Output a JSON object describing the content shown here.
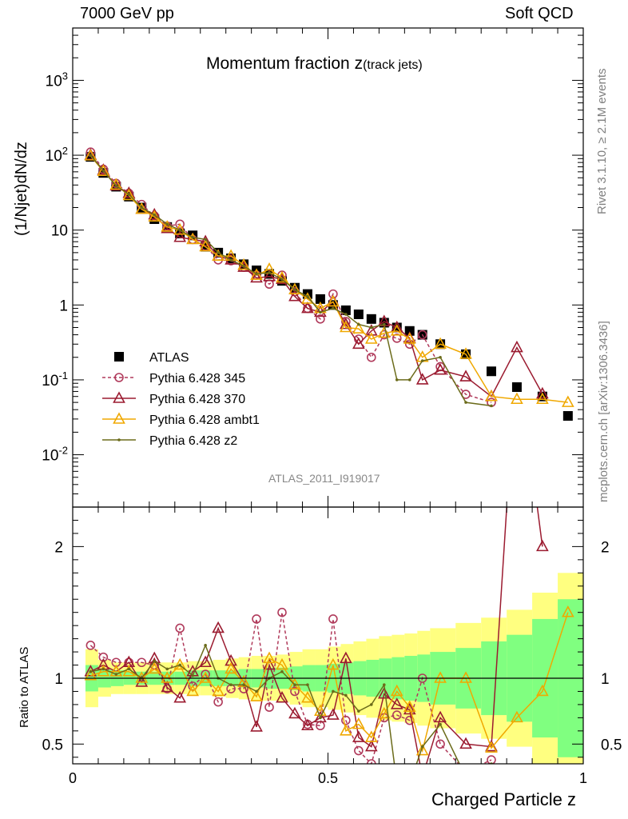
{
  "header": {
    "left": "7000 GeV pp",
    "right": "Soft QCD"
  },
  "sidebar": {
    "rivet": "Rivet 3.1.10, ≥ 2.1M events",
    "mcplots": "mcplots.cern.ch [arXiv:1306.3436]"
  },
  "chart_data": {
    "type": "scatter",
    "title": "Momentum fraction z",
    "title_suffix": "(track jets)",
    "watermark": "ATLAS_2011_I919017",
    "xlabel": "Charged Particle z",
    "ylabel": "(1/Njet)dN/dz",
    "ratio_ylabel": "Ratio to ATLAS",
    "xlim": [
      0,
      1
    ],
    "ylim": [
      0.002,
      5000
    ],
    "ratio_ylim": [
      0.35,
      2.3
    ],
    "yscale": "log",
    "x_ticks": [
      "0",
      "0.5",
      "1"
    ],
    "y_ticks": [
      "10^-2",
      "10^-1",
      "1",
      "10",
      "10^2",
      "10^3"
    ],
    "ratio_ticks": [
      "0.5",
      "1",
      "2"
    ],
    "legend_position": "left",
    "x": [
      0.035,
      0.06,
      0.085,
      0.11,
      0.135,
      0.16,
      0.185,
      0.21,
      0.235,
      0.26,
      0.285,
      0.31,
      0.335,
      0.36,
      0.385,
      0.41,
      0.435,
      0.46,
      0.485,
      0.51,
      0.535,
      0.56,
      0.585,
      0.61,
      0.635,
      0.66,
      0.685,
      0.72,
      0.77,
      0.82,
      0.87,
      0.92,
      0.97
    ],
    "band_edges": [
      0.025,
      0.05,
      0.075,
      0.1,
      0.125,
      0.15,
      0.175,
      0.2,
      0.225,
      0.25,
      0.275,
      0.3,
      0.325,
      0.35,
      0.375,
      0.4,
      0.425,
      0.45,
      0.475,
      0.5,
      0.525,
      0.55,
      0.575,
      0.6,
      0.625,
      0.65,
      0.675,
      0.7,
      0.75,
      0.8,
      0.85,
      0.9,
      0.95,
      1.0
    ],
    "band_stat_half": [
      0.1,
      0.07,
      0.06,
      0.05,
      0.05,
      0.05,
      0.05,
      0.05,
      0.06,
      0.06,
      0.06,
      0.06,
      0.07,
      0.07,
      0.08,
      0.08,
      0.09,
      0.1,
      0.1,
      0.11,
      0.12,
      0.13,
      0.14,
      0.15,
      0.16,
      0.17,
      0.18,
      0.2,
      0.23,
      0.28,
      0.33,
      0.45,
      0.6
    ],
    "band_total_half": [
      0.22,
      0.14,
      0.12,
      0.12,
      0.12,
      0.12,
      0.12,
      0.12,
      0.13,
      0.13,
      0.14,
      0.15,
      0.16,
      0.17,
      0.17,
      0.18,
      0.2,
      0.22,
      0.22,
      0.24,
      0.26,
      0.28,
      0.3,
      0.32,
      0.33,
      0.34,
      0.36,
      0.38,
      0.42,
      0.46,
      0.52,
      0.65,
      0.8
    ],
    "series": [
      {
        "name": "ATLAS",
        "color": "#000000",
        "marker": "square",
        "values": [
          95,
          58,
          38,
          28,
          20,
          14,
          11,
          9,
          8.5,
          6,
          5,
          4.2,
          3.5,
          2.9,
          2.6,
          2.1,
          1.7,
          1.4,
          1.2,
          1.0,
          0.85,
          0.75,
          0.65,
          0.58,
          0.5,
          0.45,
          0.4,
          0.3,
          0.22,
          0.13,
          0.08,
          0.06,
          0.033
        ],
        "ratio": [
          1,
          1,
          1,
          1,
          1,
          1,
          1,
          1,
          1,
          1,
          1,
          1,
          1,
          1,
          1,
          1,
          1,
          1,
          1,
          1,
          1,
          1,
          1,
          1,
          1,
          1,
          1,
          1,
          1,
          1,
          1,
          1,
          1
        ]
      },
      {
        "name": "Pythia 6.428 345",
        "color": "#b03a5b",
        "marker": "circle",
        "dashed": true,
        "values": [
          110,
          65,
          42,
          31,
          22,
          15.5,
          11.3,
          12,
          7.5,
          6.1,
          4,
          3.9,
          3.2,
          2.5,
          1.9,
          2.5,
          1.5,
          0.9,
          0.65,
          1.4,
          0.6,
          0.35,
          0.2,
          0.4,
          0.36,
          0.3,
          0.4,
          0.15,
          0.064,
          0.05
        ],
        "ratio": [
          1.25,
          1.16,
          1.12,
          1.12,
          1.12,
          1.1,
          0.92,
          1.38,
          0.94,
          1.03,
          0.82,
          0.92,
          0.92,
          1.45,
          0.78,
          1.5,
          0.9,
          0.65,
          0.64,
          1.45,
          0.68,
          0.45,
          0.35,
          0.7,
          0.72,
          0.68,
          1.0,
          0.5,
          0.29,
          0.38
        ]
      },
      {
        "name": "Pythia 6.428 370",
        "color": "#9b1b30",
        "marker": "triangle",
        "values": [
          100,
          63,
          39,
          31,
          19,
          16,
          10.5,
          8,
          7.5,
          7,
          4.5,
          4,
          3.2,
          2.3,
          2.4,
          2.2,
          1.3,
          0.9,
          0.8,
          1.1,
          0.55,
          0.3,
          0.45,
          0.6,
          0.5,
          0.36,
          0.1,
          0.135,
          0.11,
          0.06,
          0.27,
          0.065
        ],
        "ratio": [
          1.05,
          1.1,
          1.05,
          1.12,
          0.97,
          1.15,
          0.93,
          0.85,
          1.05,
          1.12,
          1.38,
          1.13,
          0.97,
          0.63,
          1.1,
          0.85,
          0.73,
          0.64,
          0.7,
          0.72,
          1.15,
          0.55,
          0.48,
          0.88,
          0.8,
          0.76,
          0.25,
          0.7,
          0.5,
          0.48,
          3.5,
          2.0
        ]
      },
      {
        "name": "Pythia 6.428 ambt1",
        "color": "#f0a800",
        "marker": "triangle",
        "values": [
          98,
          61,
          40,
          29,
          19,
          15,
          11,
          10,
          7.5,
          6,
          4.5,
          4.5,
          3.4,
          2.5,
          3,
          2.3,
          1.6,
          1.2,
          0.9,
          1.1,
          0.5,
          0.48,
          0.35,
          0.42,
          0.45,
          0.35,
          0.2,
          0.3,
          0.22,
          0.06,
          0.055,
          0.055,
          0.05
        ],
        "ratio": [
          1.02,
          1.05,
          1.05,
          1.05,
          1.0,
          1.07,
          1.0,
          1.1,
          0.9,
          1.0,
          0.9,
          1.07,
          0.97,
          0.86,
          1.15,
          1.1,
          0.95,
          0.85,
          0.75,
          1.1,
          0.6,
          0.65,
          0.55,
          0.73,
          0.9,
          0.78,
          0.45,
          1.0,
          1.0,
          0.47,
          0.7,
          0.9,
          1.5
        ]
      },
      {
        "name": "Pythia 6.428 z2",
        "color": "#6b6b1a",
        "marker": "dot",
        "values": [
          100,
          62,
          39,
          30,
          20,
          16,
          12,
          10,
          8,
          7.5,
          5,
          4,
          3.3,
          2.6,
          2.7,
          2.2,
          1.6,
          1.3,
          0.8,
          0.9,
          0.75,
          0.55,
          0.5,
          0.55,
          0.1,
          0.1,
          0.18,
          0.2,
          0.05,
          0.045
        ],
        "ratio": [
          1.05,
          1.07,
          1.03,
          1.07,
          1.0,
          1.13,
          1.07,
          1.1,
          1.02,
          1.25,
          1.0,
          0.95,
          0.95,
          0.9,
          1.0,
          1.05,
          0.95,
          0.95,
          0.7,
          0.9,
          0.87,
          0.75,
          0.8,
          0.95,
          0.2,
          0.2,
          0.48,
          0.65,
          0.25,
          0.35
        ]
      }
    ]
  }
}
